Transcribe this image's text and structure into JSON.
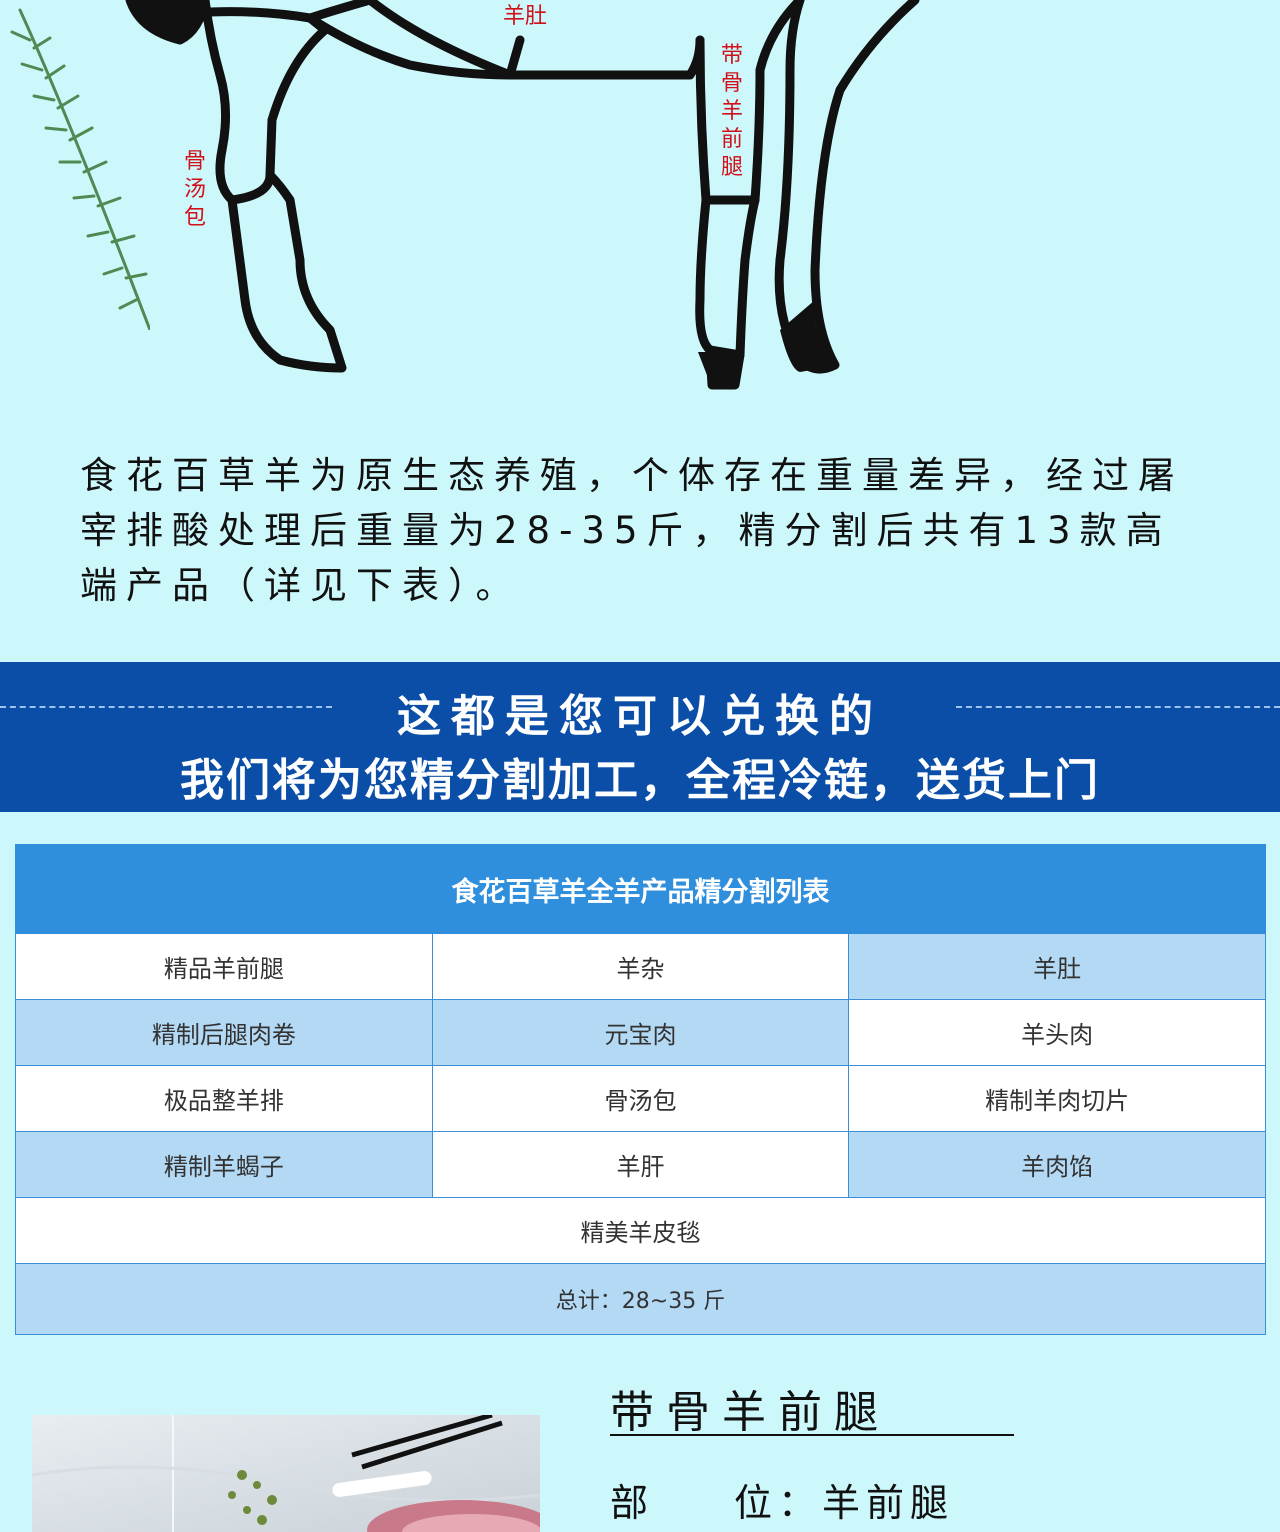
{
  "diagram": {
    "labels": {
      "belly": "羊肚",
      "front_leg": "带骨羊前腿",
      "soup_pack": "骨汤包"
    }
  },
  "intro": {
    "text": "食花百草羊为原生态养殖，个体存在重量差异，经过屠宰排酸处理后重量为28-35斤，精分割后共有13款高端产品（详见下表）。"
  },
  "banner": {
    "line1": "这都是您可以兑换的",
    "line2": "我们将为您精分割加工，全程冷链，送货上门"
  },
  "table": {
    "title": "食花百草羊全羊产品精分割列表",
    "rows": [
      [
        "精品羊前腿",
        "羊杂",
        "羊肚"
      ],
      [
        "精制后腿肉卷",
        "元宝肉",
        "羊头肉"
      ],
      [
        "极品整羊排",
        "骨汤包",
        "精制羊肉切片"
      ],
      [
        "精制羊蝎子",
        "羊肝",
        "羊肉馅"
      ]
    ],
    "full_row": "精美羊皮毯",
    "total": "总计：28~35 斤"
  },
  "product": {
    "title": "带骨羊前腿",
    "part_label": "部",
    "part_label2": "位：",
    "part_value": "羊前腿"
  },
  "colors": {
    "background": "#cdf8fb",
    "banner": "#0a4ea8",
    "table_header": "#2f8fdc",
    "table_row_blue": "#b3d9f4",
    "label_red": "#d0101a"
  }
}
